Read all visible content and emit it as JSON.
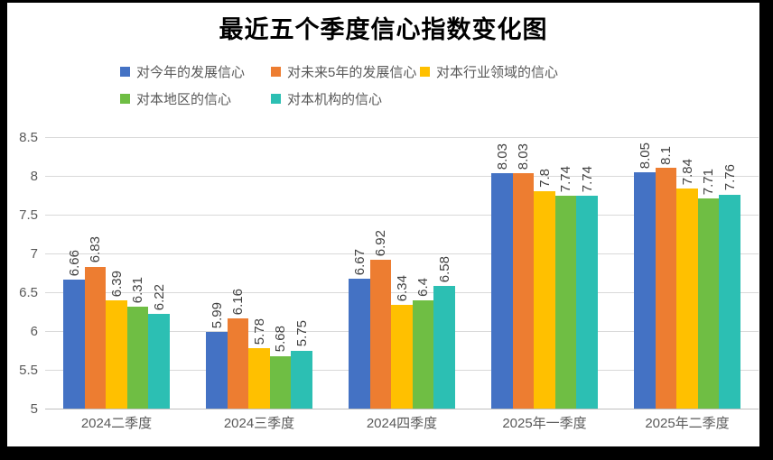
{
  "title": "最近五个季度信心指数变化图",
  "chart_data": {
    "type": "bar",
    "title": "最近五个季度信心指数变化图",
    "categories": [
      "2024二季度",
      "2024三季度",
      "2024四季度",
      "2025年一季度",
      "2025年二季度"
    ],
    "series": [
      {
        "name": "对今年的发展信心",
        "color": "#4472C4",
        "values": [
          6.66,
          5.99,
          6.67,
          8.03,
          8.05
        ]
      },
      {
        "name": "对未来5年的发展信心",
        "color": "#ED7D31",
        "values": [
          6.83,
          6.16,
          6.92,
          8.03,
          8.1
        ]
      },
      {
        "name": "对本行业领域的信心",
        "color": "#FFC000",
        "values": [
          6.39,
          5.78,
          6.34,
          7.8,
          7.84
        ]
      },
      {
        "name": "对本地区的信心",
        "color": "#6FBE44",
        "values": [
          6.31,
          5.68,
          6.4,
          7.74,
          7.71
        ]
      },
      {
        "name": "对本机构的信心",
        "color": "#2CBFB3",
        "values": [
          6.22,
          5.75,
          6.58,
          7.74,
          7.76
        ]
      }
    ],
    "xlabel": "",
    "ylabel": "",
    "ylim": [
      5,
      8.5
    ],
    "ytick_step": 0.5,
    "grid": true,
    "legend_position": "top",
    "data_labels": "rotated-vertical"
  },
  "colors": {
    "page_frame": "#000000",
    "chart_background": "#FFFFFF",
    "gridline": "#D9D9D9",
    "axis_line": "#BFBFBF",
    "tick_label": "#595959",
    "data_label": "#404040",
    "title_text": "#000000"
  }
}
